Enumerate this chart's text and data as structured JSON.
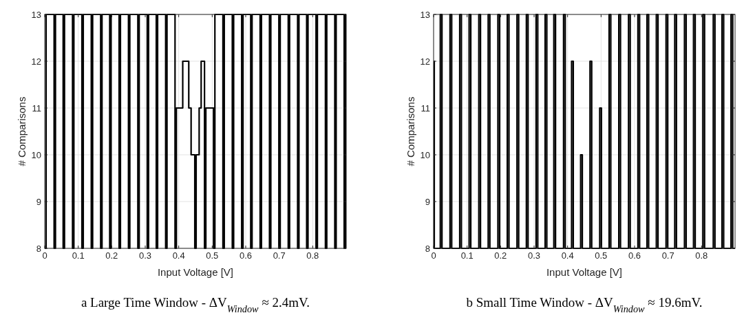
{
  "chart_data": [
    {
      "type": "step",
      "xlabel": "Input Voltage [V]",
      "ylabel": "# Comparisons",
      "annotations": [
        "a  Large Time Window - ΔV$_{Window}$ ≈ 2.4mV."
      ],
      "xlim": [
        0,
        0.9
      ],
      "ylim": [
        8,
        13
      ],
      "xticks": [
        0,
        0.1,
        0.2,
        0.3,
        0.4,
        0.5,
        0.6,
        0.7,
        0.8
      ],
      "yticks": [
        8,
        9,
        10,
        11,
        12,
        13
      ],
      "grid": true,
      "series": [
        {
          "color": "#000000",
          "x": [
            0,
            0.004,
            0.028,
            0.032,
            0.055,
            0.059,
            0.083,
            0.087,
            0.111,
            0.115,
            0.139,
            0.143,
            0.167,
            0.171,
            0.194,
            0.198,
            0.222,
            0.226,
            0.25,
            0.254,
            0.278,
            0.282,
            0.306,
            0.31,
            0.333,
            0.337,
            0.361,
            0.365,
            0.389,
            0.393,
            0.412,
            0.43,
            0.437,
            0.448,
            0.452,
            0.461,
            0.467,
            0.477,
            0.481,
            0.504,
            0.508,
            0.532,
            0.536,
            0.56,
            0.564,
            0.588,
            0.592,
            0.615,
            0.619,
            0.643,
            0.647,
            0.671,
            0.675,
            0.699,
            0.703,
            0.727,
            0.731,
            0.755,
            0.759,
            0.782,
            0.786,
            0.81,
            0.814,
            0.838,
            0.842,
            0.866,
            0.87,
            0.894,
            0.898,
            0.9
          ],
          "values": [
            8,
            13,
            8,
            13,
            8,
            13,
            8,
            13,
            8,
            13,
            8,
            13,
            8,
            13,
            8,
            13,
            8,
            13,
            8,
            13,
            8,
            13,
            8,
            13,
            8,
            13,
            8,
            13,
            8,
            11,
            12,
            11,
            10,
            8,
            10,
            11,
            12,
            8,
            11,
            8,
            13,
            8,
            13,
            8,
            13,
            8,
            13,
            8,
            13,
            8,
            13,
            8,
            13,
            8,
            13,
            8,
            13,
            8,
            13,
            8,
            13,
            8,
            13,
            8,
            13,
            8,
            13,
            8,
            13,
            13
          ]
        }
      ]
    },
    {
      "type": "step",
      "xlabel": "Input Voltage [V]",
      "ylabel": "# Comparisons",
      "annotations": [
        "b  Small Time Window - ΔV$_{Window}$ ≈ 19.6mV."
      ],
      "xlim": [
        0,
        0.9
      ],
      "ylim": [
        8,
        13
      ],
      "xticks": [
        0,
        0.1,
        0.2,
        0.3,
        0.4,
        0.5,
        0.6,
        0.7,
        0.8
      ],
      "yticks": [
        8,
        9,
        10,
        11,
        12,
        13
      ],
      "grid": true,
      "series": [
        {
          "color": "#000000",
          "x": [
            0,
            0.002,
            0.02,
            0.025,
            0.049,
            0.054,
            0.078,
            0.083,
            0.106,
            0.111,
            0.135,
            0.14,
            0.163,
            0.168,
            0.192,
            0.197,
            0.22,
            0.225,
            0.249,
            0.254,
            0.277,
            0.282,
            0.306,
            0.311,
            0.333,
            0.338,
            0.359,
            0.364,
            0.388,
            0.393,
            0.412,
            0.417,
            0.439,
            0.444,
            0.467,
            0.472,
            0.496,
            0.501,
            0.524,
            0.529,
            0.553,
            0.558,
            0.582,
            0.587,
            0.61,
            0.615,
            0.637,
            0.642,
            0.665,
            0.67,
            0.694,
            0.699,
            0.72,
            0.725,
            0.749,
            0.754,
            0.776,
            0.781,
            0.804,
            0.809,
            0.835,
            0.84,
            0.861,
            0.866,
            0.888,
            0.893,
            0.9
          ],
          "values": [
            12,
            8,
            13,
            8,
            13,
            8,
            13,
            8,
            13,
            8,
            13,
            8,
            13,
            8,
            13,
            8,
            13,
            8,
            13,
            8,
            13,
            8,
            13,
            8,
            13,
            8,
            13,
            8,
            13,
            8,
            12,
            8,
            10,
            8,
            12,
            8,
            11,
            8,
            13,
            8,
            13,
            8,
            13,
            8,
            13,
            8,
            13,
            8,
            13,
            8,
            13,
            8,
            13,
            8,
            13,
            8,
            13,
            8,
            13,
            8,
            13,
            8,
            13,
            8,
            13,
            8,
            8
          ]
        }
      ]
    }
  ]
}
